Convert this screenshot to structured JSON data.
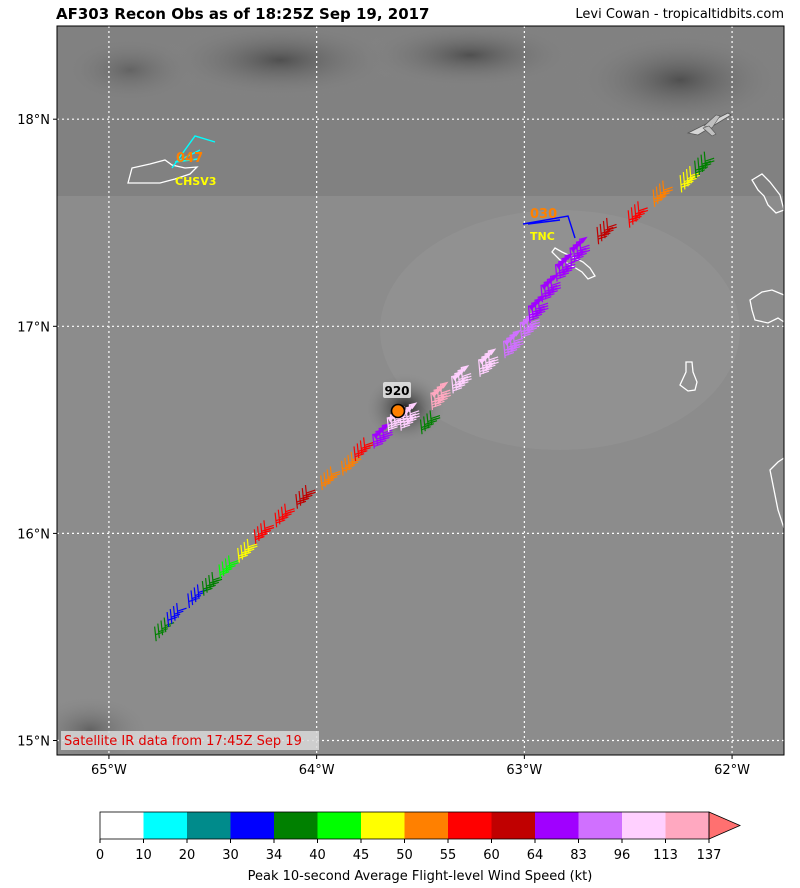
{
  "header": {
    "title": "AF303 Recon Obs as of 18:25Z Sep 19, 2017",
    "credit": "Levi Cowan - tropicaltidbits.com"
  },
  "map": {
    "lon_range": [
      -65.25,
      -61.75
    ],
    "lat_range": [
      14.93,
      18.45
    ],
    "lon_ticks": [
      -65,
      -64,
      -63,
      -62
    ],
    "lat_ticks": [
      15,
      16,
      17,
      18
    ],
    "lon_tick_labels": [
      "65°W",
      "64°W",
      "63°W",
      "62°W"
    ],
    "lat_tick_labels": [
      "15°N",
      "16°N",
      "17°N",
      "18°N"
    ],
    "grid": true,
    "satellite_note": "Satellite IR data from 17:45Z Sep 19",
    "center_pressure_label": "920",
    "center": {
      "lon": -63.6,
      "lat": 16.58
    },
    "stations": [
      {
        "id": "CHSV3",
        "value": "047",
        "lon": -64.65,
        "lat": 17.75
      },
      {
        "id": "TNC",
        "value": "030",
        "lon": -62.95,
        "lat": 17.5
      }
    ]
  },
  "colorbar": {
    "label": "Peak 10-second Average Flight-level Wind Speed (kt)",
    "bounds": [
      "0",
      "10",
      "20",
      "30",
      "34",
      "40",
      "45",
      "50",
      "55",
      "60",
      "64",
      "83",
      "96",
      "113",
      "137"
    ],
    "colors": [
      "#ffffff",
      "#00ffff",
      "#008b8b",
      "#0000ff",
      "#008000",
      "#00ff00",
      "#ffff00",
      "#ff8000",
      "#ff0000",
      "#c00000",
      "#a000ff",
      "#d070ff",
      "#ffd0ff",
      "#ffa8c0"
    ],
    "extend_color": "#ff7070"
  },
  "chart_data": {
    "type": "scatter",
    "title": "AF303 Recon Obs as of 18:25Z Sep 19, 2017",
    "xlabel": "",
    "ylabel": "",
    "xlim": [
      -65.25,
      -61.75
    ],
    "ylim": [
      14.93,
      18.45
    ],
    "series": [
      {
        "name": "flight track wind barbs",
        "points": [
          {
            "lon": -64.78,
            "lat": 15.55,
            "kt": 36
          },
          {
            "lon": -64.72,
            "lat": 15.62,
            "kt": 32
          },
          {
            "lon": -64.62,
            "lat": 15.71,
            "kt": 31
          },
          {
            "lon": -64.55,
            "lat": 15.77,
            "kt": 38
          },
          {
            "lon": -64.47,
            "lat": 15.85,
            "kt": 42
          },
          {
            "lon": -64.38,
            "lat": 15.93,
            "kt": 47
          },
          {
            "lon": -64.3,
            "lat": 16.02,
            "kt": 57
          },
          {
            "lon": -64.2,
            "lat": 16.1,
            "kt": 58
          },
          {
            "lon": -64.1,
            "lat": 16.19,
            "kt": 61
          },
          {
            "lon": -63.98,
            "lat": 16.28,
            "kt": 52
          },
          {
            "lon": -63.88,
            "lat": 16.35,
            "kt": 51
          },
          {
            "lon": -63.82,
            "lat": 16.42,
            "kt": 57
          },
          {
            "lon": -63.73,
            "lat": 16.48,
            "kt": 72
          },
          {
            "lon": -63.66,
            "lat": 16.56,
            "kt": 98
          },
          {
            "lon": -63.6,
            "lat": 16.58,
            "kt": 105
          },
          {
            "lon": -63.5,
            "lat": 16.55,
            "kt": 38
          },
          {
            "lon": -63.45,
            "lat": 16.68,
            "kt": 120
          },
          {
            "lon": -63.35,
            "lat": 16.76,
            "kt": 110
          },
          {
            "lon": -63.22,
            "lat": 16.84,
            "kt": 100
          },
          {
            "lon": -63.1,
            "lat": 16.93,
            "kt": 90
          },
          {
            "lon": -63.02,
            "lat": 17.02,
            "kt": 85
          },
          {
            "lon": -62.98,
            "lat": 17.1,
            "kt": 72
          },
          {
            "lon": -62.92,
            "lat": 17.2,
            "kt": 70
          },
          {
            "lon": -62.85,
            "lat": 17.3,
            "kt": 68
          },
          {
            "lon": -62.78,
            "lat": 17.38,
            "kt": 66
          },
          {
            "lon": -62.65,
            "lat": 17.48,
            "kt": 61
          },
          {
            "lon": -62.5,
            "lat": 17.56,
            "kt": 58
          },
          {
            "lon": -62.38,
            "lat": 17.66,
            "kt": 52
          },
          {
            "lon": -62.25,
            "lat": 17.73,
            "kt": 47
          },
          {
            "lon": -62.18,
            "lat": 17.8,
            "kt": 38
          }
        ]
      }
    ]
  }
}
